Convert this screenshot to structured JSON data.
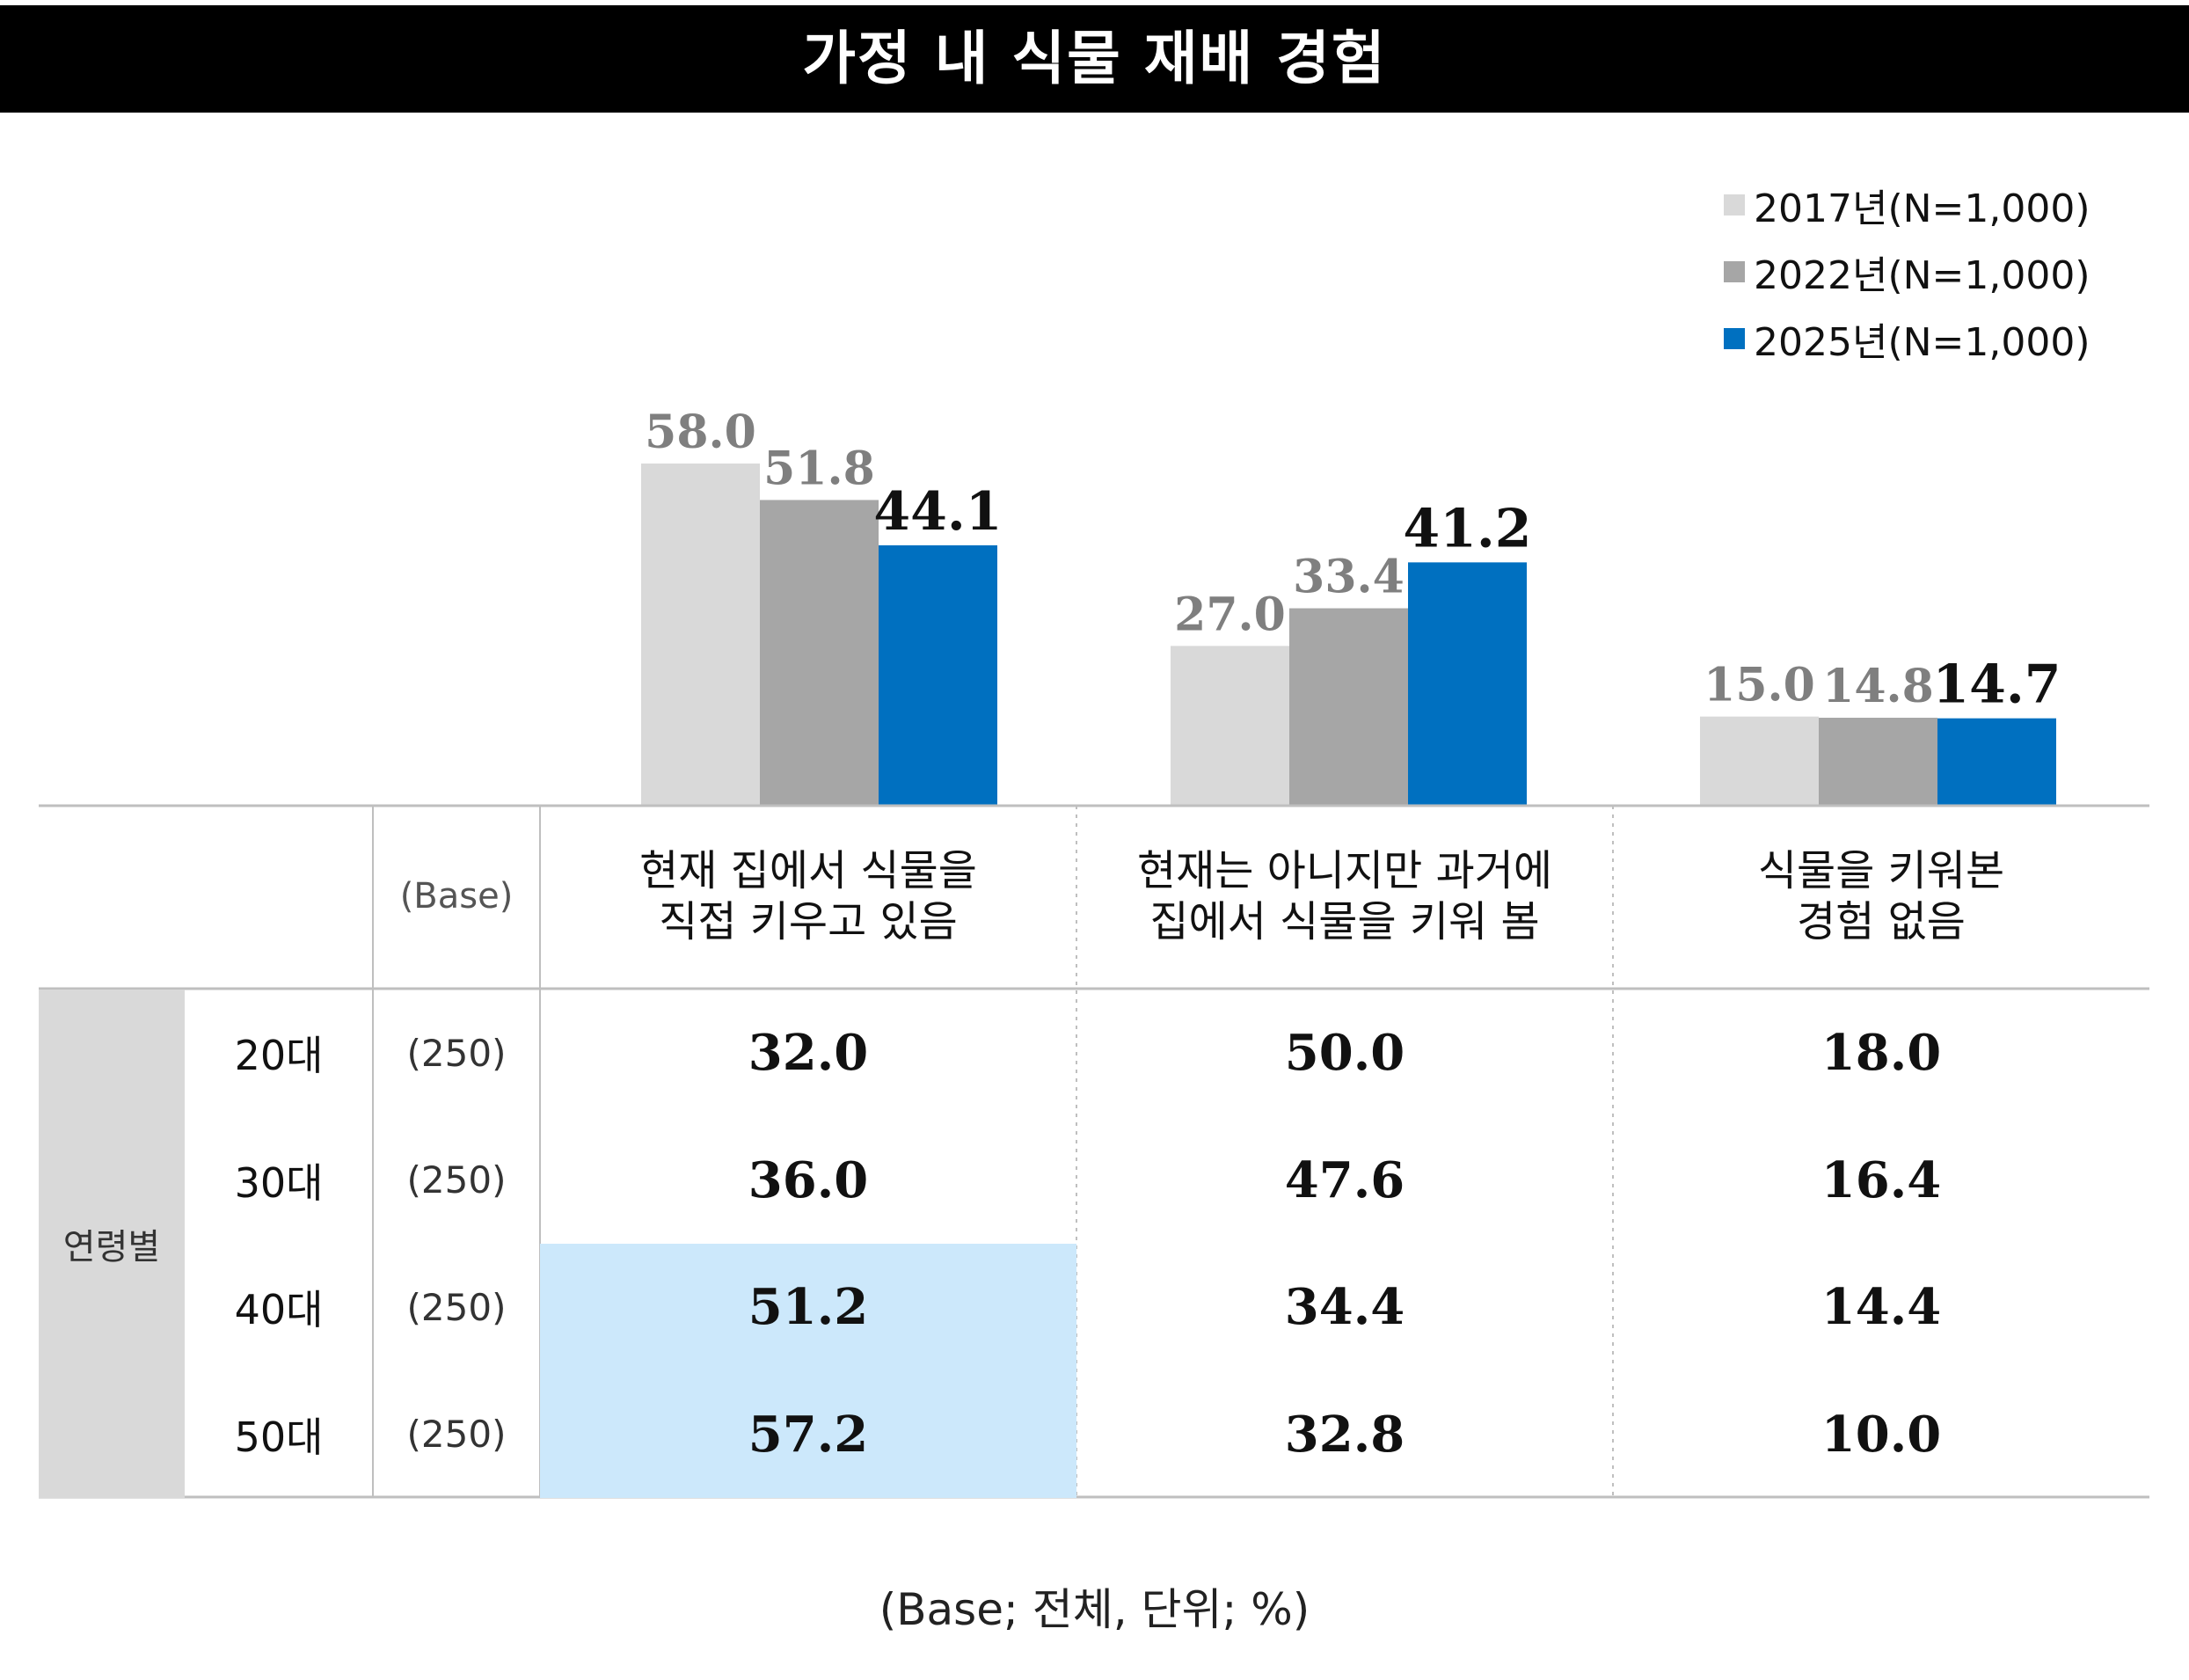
{
  "title": "가정 내 식물 재배 경험",
  "legend": [
    {
      "label": "2017년(N=1,000)",
      "color": "#d9d9d9"
    },
    {
      "label": "2022년(N=1,000)",
      "color": "#a6a6a6"
    },
    {
      "label": "2025년(N=1,000)",
      "color": "#0070c0"
    }
  ],
  "chart_data": {
    "type": "bar",
    "categories": [
      "현재 집에서 식물을\n직접 키우고 있음",
      "현재는 아니지만 과거에\n집에서 식물을 키워 봄",
      "식물을 키워본\n경험 없음"
    ],
    "series": [
      {
        "name": "2017년(N=1,000)",
        "values": [
          58.0,
          27.0,
          15.0
        ],
        "labels": [
          "58.0",
          "27.0",
          "15.0"
        ],
        "color": "#d9d9d9"
      },
      {
        "name": "2022년(N=1,000)",
        "values": [
          51.8,
          33.4,
          14.8
        ],
        "labels": [
          "51.8",
          "33.4",
          "14.8"
        ],
        "color": "#a6a6a6"
      },
      {
        "name": "2025년(N=1,000)",
        "values": [
          44.1,
          41.2,
          14.7
        ],
        "labels": [
          "44.1",
          "41.2",
          "14.7"
        ],
        "color": "#0070c0"
      }
    ],
    "ylim": [
      0,
      70
    ],
    "grid": false,
    "legend_position": "top-right"
  },
  "table": {
    "base_header": "(Base)",
    "group_label": "연령별",
    "rows": [
      {
        "label": "20대",
        "base": "(250)",
        "values": [
          "32.0",
          "50.0",
          "18.0"
        ],
        "highlight": [
          false,
          false,
          false
        ]
      },
      {
        "label": "30대",
        "base": "(250)",
        "values": [
          "36.0",
          "47.6",
          "16.4"
        ],
        "highlight": [
          false,
          false,
          false
        ]
      },
      {
        "label": "40대",
        "base": "(250)",
        "values": [
          "51.2",
          "34.4",
          "14.4"
        ],
        "highlight": [
          true,
          false,
          false
        ]
      },
      {
        "label": "50대",
        "base": "(250)",
        "values": [
          "57.2",
          "32.8",
          "10.0"
        ],
        "highlight": [
          true,
          false,
          false
        ]
      }
    ],
    "highlight_color": "#cce8fb",
    "group_bg": "#d9d9d9"
  },
  "footnote": "(Base; 전체, 단위; %)"
}
